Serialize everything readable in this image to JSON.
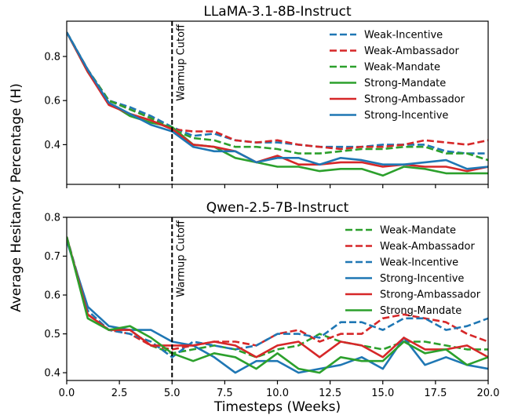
{
  "chart_data": [
    {
      "type": "line",
      "title": "LLaMA-3.1-8B-Instruct",
      "xlabel": "",
      "ylabel": "",
      "xlim": [
        0,
        20
      ],
      "ylim": [
        0.22,
        0.96
      ],
      "xticks": [],
      "yticks": [
        0.4,
        0.6,
        0.8
      ],
      "grid": false,
      "legend_position": "upper right",
      "annotation": {
        "x": 5,
        "label": "Warmup Cutoff"
      },
      "x": [
        0,
        1,
        2,
        3,
        4,
        5,
        6,
        7,
        8,
        9,
        10,
        11,
        12,
        13,
        14,
        15,
        16,
        17,
        18,
        19,
        20
      ],
      "series": [
        {
          "name": "Weak-Incentive",
          "color": "#1f77b4",
          "style": "dashed",
          "values": [
            0.91,
            0.74,
            0.6,
            0.57,
            0.53,
            0.48,
            0.44,
            0.45,
            0.42,
            0.41,
            0.41,
            0.4,
            0.39,
            0.39,
            0.39,
            0.4,
            0.4,
            0.4,
            0.37,
            0.36,
            0.36
          ]
        },
        {
          "name": "Weak-Ambassador",
          "color": "#d62728",
          "style": "dashed",
          "values": [
            0.91,
            0.74,
            0.6,
            0.56,
            0.52,
            0.47,
            0.46,
            0.46,
            0.42,
            0.41,
            0.42,
            0.4,
            0.39,
            0.38,
            0.39,
            0.39,
            0.4,
            0.42,
            0.41,
            0.4,
            0.42
          ]
        },
        {
          "name": "Weak-Mandate",
          "color": "#2ca02c",
          "style": "dashed",
          "values": [
            0.91,
            0.74,
            0.6,
            0.56,
            0.52,
            0.47,
            0.43,
            0.42,
            0.39,
            0.39,
            0.38,
            0.36,
            0.36,
            0.37,
            0.38,
            0.38,
            0.39,
            0.39,
            0.36,
            0.36,
            0.33
          ]
        },
        {
          "name": "Strong-Mandate",
          "color": "#2ca02c",
          "style": "solid",
          "values": [
            0.91,
            0.73,
            0.59,
            0.53,
            0.5,
            0.48,
            0.4,
            0.39,
            0.34,
            0.32,
            0.3,
            0.3,
            0.28,
            0.29,
            0.29,
            0.26,
            0.3,
            0.29,
            0.27,
            0.27,
            0.27
          ]
        },
        {
          "name": "Strong-Ambassador",
          "color": "#d62728",
          "style": "solid",
          "values": [
            0.91,
            0.73,
            0.58,
            0.54,
            0.51,
            0.47,
            0.4,
            0.39,
            0.37,
            0.32,
            0.35,
            0.31,
            0.31,
            0.32,
            0.32,
            0.3,
            0.31,
            0.3,
            0.3,
            0.28,
            0.3
          ]
        },
        {
          "name": "Strong-Incentive",
          "color": "#1f77b4",
          "style": "solid",
          "values": [
            0.91,
            0.74,
            0.59,
            0.54,
            0.49,
            0.46,
            0.39,
            0.37,
            0.37,
            0.32,
            0.34,
            0.34,
            0.31,
            0.34,
            0.33,
            0.31,
            0.31,
            0.32,
            0.33,
            0.29,
            0.3
          ]
        }
      ]
    },
    {
      "type": "line",
      "title": "Qwen-2.5-7B-Instruct",
      "xlabel": "Timesteps (Weeks)",
      "ylabel": "",
      "xlim": [
        0,
        20
      ],
      "ylim": [
        0.38,
        0.8
      ],
      "xticks": [
        0.0,
        2.5,
        5.0,
        7.5,
        10.0,
        12.5,
        15.0,
        17.5,
        20.0
      ],
      "xtick_labels": [
        "0.0",
        "2.5",
        "5.0",
        "7.5",
        "10.0",
        "12.5",
        "15.0",
        "17.5",
        "20.0"
      ],
      "yticks": [
        0.4,
        0.5,
        0.6,
        0.7,
        0.8
      ],
      "grid": false,
      "legend_position": "upper right",
      "annotation": {
        "x": 5,
        "label": "Warmup Cutoff"
      },
      "x": [
        0,
        1,
        2,
        3,
        4,
        5,
        6,
        7,
        8,
        9,
        10,
        11,
        12,
        13,
        14,
        15,
        16,
        17,
        18,
        19,
        20
      ],
      "series": [
        {
          "name": "Weak-Mandate",
          "color": "#2ca02c",
          "style": "dashed",
          "values": [
            0.75,
            0.55,
            0.51,
            0.51,
            0.47,
            0.45,
            0.46,
            0.47,
            0.46,
            0.44,
            0.46,
            0.47,
            0.5,
            0.48,
            0.47,
            0.46,
            0.48,
            0.48,
            0.47,
            0.46,
            0.46
          ]
        },
        {
          "name": "Weak-Ambassador",
          "color": "#d62728",
          "style": "dashed",
          "values": [
            0.75,
            0.55,
            0.51,
            0.5,
            0.47,
            0.46,
            0.47,
            0.48,
            0.48,
            0.47,
            0.5,
            0.51,
            0.48,
            0.5,
            0.5,
            0.54,
            0.55,
            0.54,
            0.53,
            0.5,
            0.48
          ]
        },
        {
          "name": "Weak-Incentive",
          "color": "#1f77b4",
          "style": "dashed",
          "values": [
            0.75,
            0.56,
            0.51,
            0.5,
            0.48,
            0.44,
            0.48,
            0.47,
            0.46,
            0.47,
            0.5,
            0.5,
            0.49,
            0.53,
            0.53,
            0.51,
            0.54,
            0.54,
            0.51,
            0.52,
            0.54
          ]
        },
        {
          "name": "Strong-Incentive",
          "color": "#1f77b4",
          "style": "solid",
          "values": [
            0.74,
            0.57,
            0.52,
            0.51,
            0.51,
            0.48,
            0.47,
            0.44,
            0.4,
            0.43,
            0.43,
            0.4,
            0.41,
            0.42,
            0.44,
            0.41,
            0.49,
            0.42,
            0.44,
            0.42,
            0.41
          ]
        },
        {
          "name": "Strong-Ambassador",
          "color": "#d62728",
          "style": "solid",
          "values": [
            0.75,
            0.55,
            0.51,
            0.51,
            0.47,
            0.47,
            0.47,
            0.48,
            0.47,
            0.44,
            0.47,
            0.48,
            0.44,
            0.48,
            0.47,
            0.44,
            0.49,
            0.46,
            0.46,
            0.47,
            0.44
          ]
        },
        {
          "name": "Strong-Mandate",
          "color": "#2ca02c",
          "style": "solid",
          "values": [
            0.75,
            0.54,
            0.51,
            0.52,
            0.49,
            0.45,
            0.43,
            0.45,
            0.44,
            0.41,
            0.45,
            0.41,
            0.4,
            0.44,
            0.43,
            0.43,
            0.48,
            0.45,
            0.46,
            0.42,
            0.44
          ]
        }
      ]
    }
  ],
  "figure": {
    "shared_ylabel": "Average Hesitancy Percentage (H)"
  }
}
